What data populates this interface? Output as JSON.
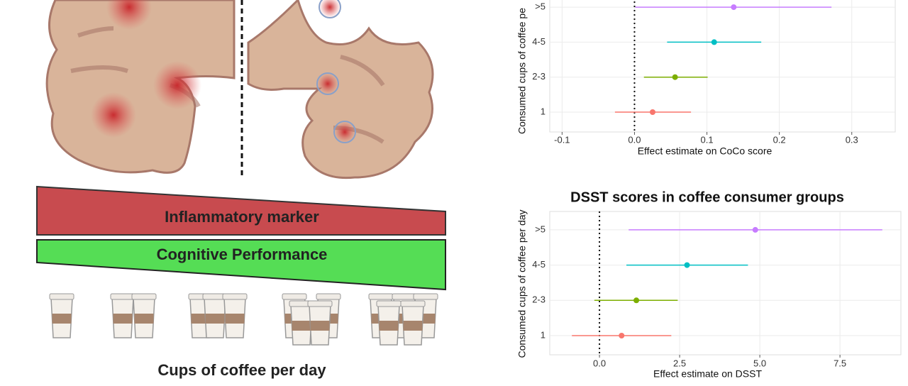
{
  "illustration": {
    "top_bar": "Inflammatory marker",
    "bottom_bar": "Cognitive Performance",
    "caption": "Cups of coffee per day"
  },
  "chart_data": [
    {
      "type": "forest",
      "ylabel": "Consumed cups of coffee pe",
      "xlabel": "Effect estimate on CoCo score",
      "categories": [
        "1",
        "2-3",
        "4-5",
        ">5"
      ],
      "values": [
        0.025,
        0.056,
        0.11,
        0.137
      ],
      "lower": [
        -0.027,
        0.013,
        0.045,
        0.001
      ],
      "upper": [
        0.078,
        0.101,
        0.175,
        0.272
      ],
      "colors": [
        "#F8766D",
        "#7CAE00",
        "#00BFC4",
        "#C77CFF"
      ],
      "xlim": [
        -0.117,
        0.36
      ],
      "xticks": [
        -0.1,
        {
          "value": 0,
          "label": "0.0"
        },
        0.1,
        0.2,
        0.3
      ],
      "vline": 0,
      "grid": true
    },
    {
      "type": "forest",
      "title": "DSST scores in coffee consumer groups",
      "ylabel": "Consumed cups of coffee per day",
      "xlabel": "Effect estimate on DSST",
      "categories": [
        "1",
        "2-3",
        "4-5",
        ">5"
      ],
      "values": [
        0.69,
        1.15,
        2.73,
        4.86
      ],
      "lower": [
        -0.86,
        -0.16,
        0.84,
        0.91
      ],
      "upper": [
        2.24,
        2.44,
        4.63,
        8.82
      ],
      "colors": [
        "#F8766D",
        "#7CAE00",
        "#00BFC4",
        "#C77CFF"
      ],
      "xlim": [
        -1.55,
        9.4
      ],
      "xticks": [
        {
          "value": 0,
          "label": "0.0"
        },
        2.5,
        {
          "value": 5,
          "label": "5.0"
        },
        7.5
      ],
      "vline": 0,
      "grid": true
    }
  ]
}
